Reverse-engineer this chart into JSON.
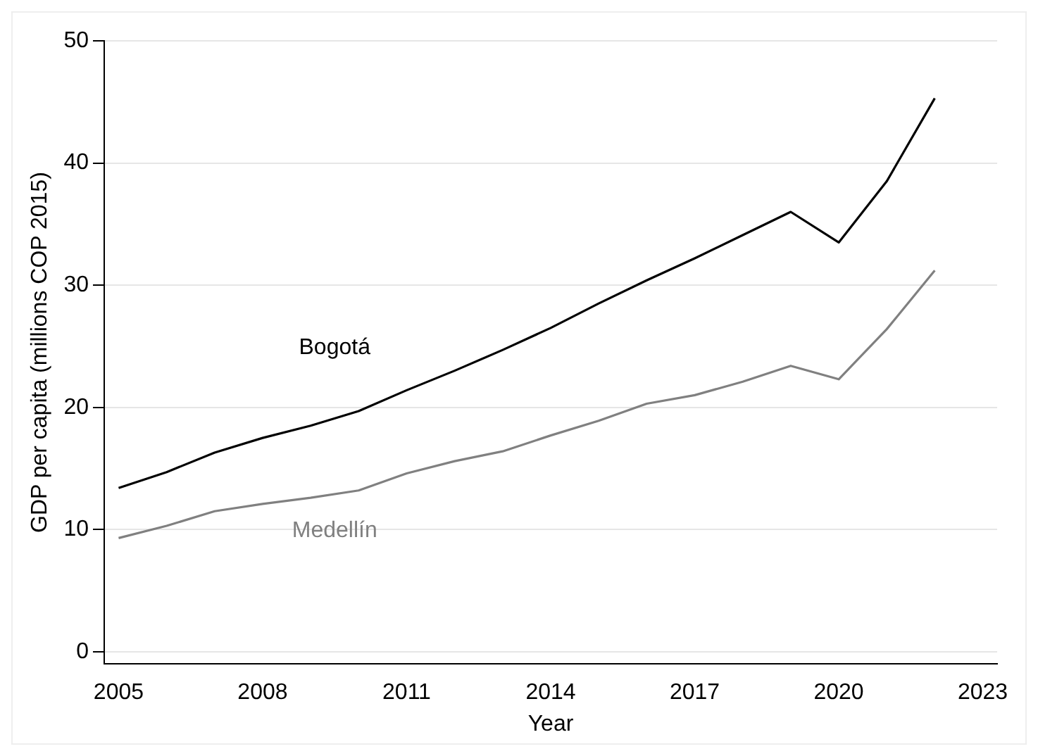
{
  "chart_data": {
    "type": "line",
    "xlabel": "Year",
    "ylabel": "GDP per capita (millions COP 2015)",
    "x": [
      2005,
      2006,
      2007,
      2008,
      2009,
      2010,
      2011,
      2012,
      2013,
      2014,
      2015,
      2016,
      2017,
      2018,
      2019,
      2020,
      2021,
      2022
    ],
    "series": [
      {
        "name": "Bogotá",
        "color": "#000000",
        "values": [
          13.4,
          14.7,
          16.3,
          17.5,
          18.5,
          19.7,
          21.4,
          23.0,
          24.7,
          26.5,
          28.5,
          30.4,
          32.2,
          34.1,
          36.0,
          33.5,
          38.5,
          45.3
        ]
      },
      {
        "name": "Medellín",
        "color": "#808080",
        "values": [
          9.3,
          10.3,
          11.5,
          12.1,
          12.6,
          13.2,
          14.6,
          15.6,
          16.4,
          17.7,
          18.9,
          20.3,
          21.0,
          22.1,
          23.4,
          22.3,
          26.4,
          31.2
        ]
      }
    ],
    "xlim": [
      2004.7,
      2023.3
    ],
    "xticks": [
      2005,
      2008,
      2011,
      2014,
      2017,
      2020,
      2023
    ],
    "ylim": [
      -1,
      50
    ],
    "yticks": [
      0,
      10,
      20,
      30,
      40,
      50
    ],
    "grid": "y",
    "legend": false,
    "marker": "none",
    "line_style": "solid"
  }
}
